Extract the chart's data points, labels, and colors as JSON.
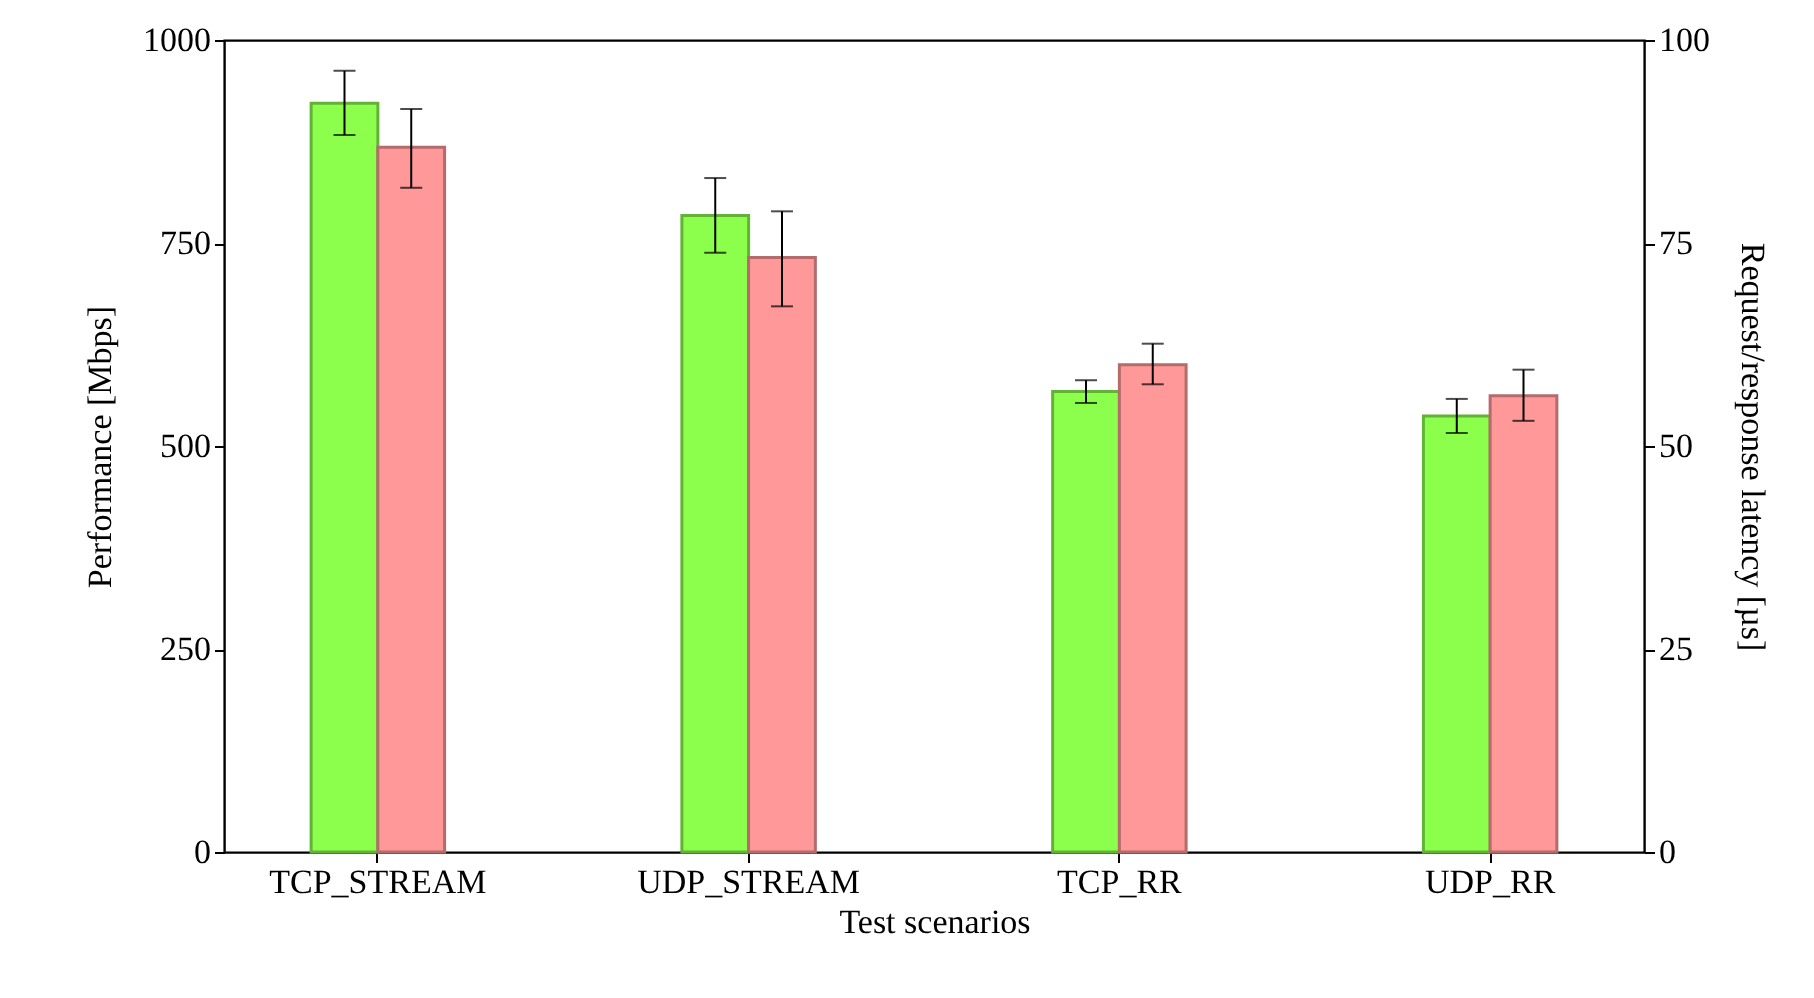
{
  "chart_data": {
    "type": "bar",
    "xlabel": "Test scenarios",
    "ylabel": "Performance [Mbps]",
    "y2label": "Request/response latency [µs]",
    "categories": [
      "TCP_STREAM",
      "UDP_STREAM",
      "TCP_RR",
      "UDP_RR"
    ],
    "series": [
      {
        "color": "#8cff4c",
        "values": [
          922,
          784,
          567,
          537
        ],
        "errors": [
          [
            883,
            962
          ],
          [
            738,
            830
          ],
          [
            553,
            581
          ],
          [
            516,
            558
          ]
        ]
      },
      {
        "color": "#ff9999",
        "axis": "y2",
        "values": [
          86.8,
          73.2,
          60.0,
          56.2
        ],
        "errors": [
          [
            81.8,
            91.5
          ],
          [
            67.2,
            78.9
          ],
          [
            57.6,
            62.6
          ],
          [
            53.1,
            59.4
          ]
        ]
      }
    ],
    "ylim": [
      0,
      1000
    ],
    "yticks": [
      0,
      250,
      500,
      750,
      1000
    ],
    "y2lim": [
      0,
      100
    ],
    "y2ticks": [
      0,
      25,
      50,
      75,
      100
    ],
    "grid": false
  }
}
